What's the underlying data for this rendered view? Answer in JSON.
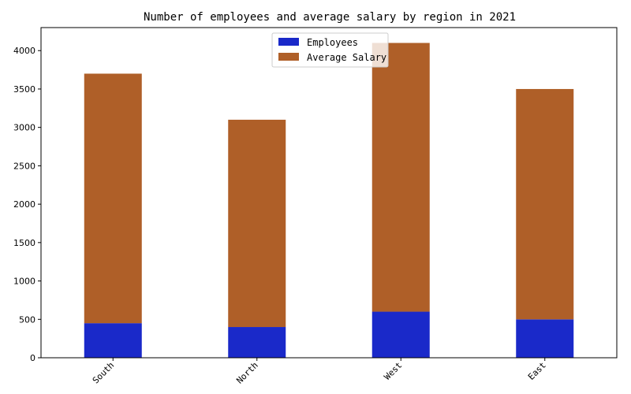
{
  "chart_data": {
    "type": "bar",
    "stacked": true,
    "title": "Number of employees and average salary by region in 2021",
    "xlabel": "",
    "ylabel": "",
    "categories": [
      "South",
      "North",
      "West",
      "East"
    ],
    "series": [
      {
        "name": "Employees",
        "values": [
          450,
          400,
          600,
          500
        ],
        "color": "#1a29c9"
      },
      {
        "name": "Average Salary",
        "values": [
          3250,
          2700,
          3500,
          3000
        ],
        "color": "#af5f28"
      }
    ],
    "ylim": [
      0,
      4300
    ],
    "yticks": [
      0,
      500,
      1000,
      1500,
      2000,
      2500,
      3000,
      3500,
      4000
    ],
    "xtick_rotation": 45,
    "legend_position": "top-center",
    "grid": false
  }
}
